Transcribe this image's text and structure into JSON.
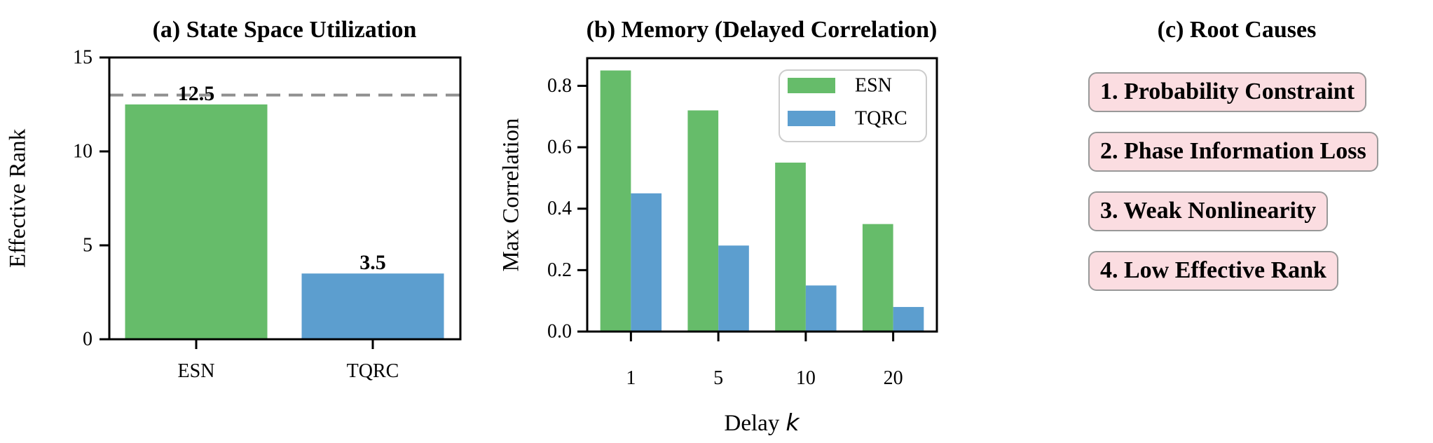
{
  "chart_data": [
    {
      "type": "bar",
      "panel": "a",
      "title": "(a) State Space Utilization",
      "ylabel": "Effective Rank",
      "categories": [
        "ESN",
        "TQRC"
      ],
      "values": [
        12.5,
        3.5
      ],
      "bar_labels": [
        "12.5",
        "3.5"
      ],
      "bar_colors": [
        "#66bc6a",
        "#5c9ecf"
      ],
      "yticks": [
        0,
        5,
        10,
        15
      ],
      "ytick_labels": [
        "0",
        "5",
        "10",
        "15"
      ],
      "ylim": [
        0,
        15
      ],
      "reference_line": 13,
      "reference_style": "dashed gray",
      "grid": "off"
    },
    {
      "type": "bar",
      "panel": "b",
      "title": "(b) Memory (Delayed Correlation)",
      "ylabel": "Max Correlation",
      "xlabel": "Delay k",
      "xlabel_prefix": "Delay",
      "xlabel_var": "k",
      "categories": [
        "1",
        "5",
        "10",
        "20"
      ],
      "series": [
        {
          "name": "ESN",
          "color": "#66bc6a",
          "values": [
            0.85,
            0.72,
            0.55,
            0.35
          ]
        },
        {
          "name": "TQRC",
          "color": "#5c9ecf",
          "values": [
            0.45,
            0.28,
            0.15,
            0.08
          ]
        }
      ],
      "yticks": [
        0,
        0.2,
        0.4,
        0.6,
        0.8
      ],
      "ytick_labels": [
        "0.0",
        "0.2",
        "0.4",
        "0.6",
        "0.8"
      ],
      "ylim": [
        0,
        0.89
      ],
      "legend": {
        "position": "upper right",
        "entries": [
          "ESN",
          "TQRC"
        ]
      },
      "grid": "off"
    },
    {
      "type": "text-boxes",
      "panel": "c",
      "title": "(c) Root Causes",
      "items": [
        "1. Probability Constraint",
        "2. Phase Information Loss",
        "3. Weak Nonlinearity",
        "4. Low Effective Rank"
      ]
    }
  ],
  "colors": {
    "esn_green": "#66bc6a",
    "tqrc_blue": "#5c9ecf",
    "reference_gray": "#909090",
    "axis_black": "#000000",
    "box_fill": "#fbdde1",
    "box_border": "#999999",
    "legend_border": "#cccccc",
    "background": "#ffffff"
  }
}
